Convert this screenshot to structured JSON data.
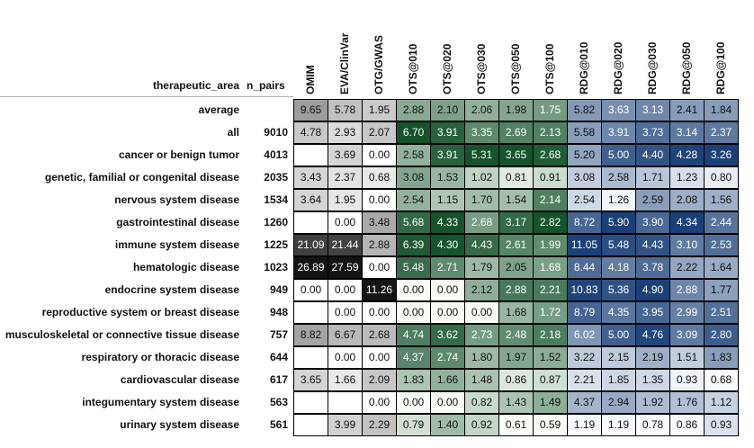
{
  "chart_data": {
    "type": "heatmap",
    "row_header": "therapeutic_area",
    "count_header": "n_pairs",
    "columns": [
      "OMIM",
      "EVA/ClinVar",
      "OTG/GWAS",
      "OTS@010",
      "OTS@020",
      "OTS@030",
      "OTS@050",
      "OTS@100",
      "RDG@010",
      "RDG@020",
      "RDG@030",
      "RDG@050",
      "RDG@100"
    ],
    "column_groups": [
      "gray",
      "gray",
      "gray",
      "green",
      "green",
      "green",
      "green",
      "green",
      "blue",
      "blue",
      "blue",
      "blue",
      "blue"
    ],
    "colors": {
      "gray_low": "#ffffff",
      "gray_high": "#000000",
      "green_low": "#f7fcf5",
      "green_high": "#00441b",
      "blue_low": "#f7fbff",
      "blue_high": "#08306b"
    },
    "rows": [
      {
        "label": "average",
        "n_pairs": "",
        "values": [
          9.65,
          5.78,
          1.95,
          2.88,
          2.1,
          2.06,
          1.98,
          1.75,
          5.82,
          3.63,
          3.13,
          2.41,
          1.84
        ]
      },
      {
        "label": "all",
        "n_pairs": "9010",
        "values": [
          4.78,
          2.93,
          2.07,
          6.7,
          3.91,
          3.35,
          2.69,
          2.13,
          5.58,
          3.91,
          3.73,
          3.14,
          2.37
        ]
      },
      {
        "label": "cancer or benign tumor",
        "n_pairs": "4013",
        "values": [
          null,
          3.69,
          0.0,
          2.58,
          3.91,
          5.31,
          3.65,
          2.68,
          5.2,
          5.0,
          4.4,
          4.28,
          3.26
        ]
      },
      {
        "label": "genetic, familial or congenital disease",
        "n_pairs": "2035",
        "values": [
          3.43,
          2.37,
          0.68,
          3.08,
          1.53,
          1.02,
          0.81,
          0.91,
          3.08,
          2.58,
          1.71,
          1.23,
          0.8
        ]
      },
      {
        "label": "nervous system disease",
        "n_pairs": "1534",
        "values": [
          3.64,
          1.95,
          0.0,
          2.54,
          1.15,
          1.7,
          1.54,
          2.14,
          2.54,
          1.26,
          2.59,
          2.08,
          1.56
        ]
      },
      {
        "label": "gastrointestinal disease",
        "n_pairs": "1260",
        "values": [
          null,
          0.0,
          3.48,
          5.68,
          4.33,
          2.68,
          3.17,
          2.82,
          8.72,
          5.9,
          3.9,
          4.34,
          2.44
        ]
      },
      {
        "label": "immune system disease",
        "n_pairs": "1225",
        "values": [
          21.09,
          21.44,
          2.88,
          6.39,
          4.3,
          4.43,
          2.61,
          1.99,
          11.05,
          5.48,
          4.43,
          3.1,
          2.53
        ]
      },
      {
        "label": "hematologic disease",
        "n_pairs": "1023",
        "values": [
          26.89,
          27.59,
          0.0,
          5.48,
          2.71,
          1.79,
          2.05,
          1.68,
          8.44,
          4.18,
          3.78,
          2.22,
          1.64
        ]
      },
      {
        "label": "endocrine system disease",
        "n_pairs": "949",
        "values": [
          0.0,
          0.0,
          11.26,
          0.0,
          0.0,
          2.12,
          2.88,
          2.21,
          10.83,
          5.36,
          4.9,
          2.88,
          1.77
        ]
      },
      {
        "label": "reproductive system or breast disease",
        "n_pairs": "948",
        "values": [
          null,
          0.0,
          0.0,
          0.0,
          0.0,
          0.0,
          1.68,
          1.72,
          8.79,
          4.35,
          3.95,
          2.99,
          2.51
        ]
      },
      {
        "label": "musculoskeletal or connective tissue disease",
        "n_pairs": "757",
        "values": [
          8.82,
          6.67,
          2.68,
          4.74,
          3.62,
          2.73,
          2.48,
          2.18,
          6.02,
          5.0,
          4.76,
          3.09,
          2.8
        ]
      },
      {
        "label": "respiratory or thoracic disease",
        "n_pairs": "644",
        "values": [
          null,
          0.0,
          0.0,
          4.37,
          2.74,
          1.8,
          1.97,
          1.52,
          3.22,
          2.15,
          2.19,
          1.51,
          1.83
        ]
      },
      {
        "label": "cardiovascular disease",
        "n_pairs": "617",
        "values": [
          3.65,
          1.66,
          2.09,
          1.83,
          1.66,
          1.48,
          0.86,
          0.87,
          2.21,
          1.85,
          1.35,
          0.93,
          0.68
        ]
      },
      {
        "label": "integumentary system disease",
        "n_pairs": "563",
        "values": [
          null,
          null,
          0.0,
          0.0,
          0.0,
          0.82,
          1.43,
          1.49,
          4.37,
          2.94,
          1.92,
          1.76,
          1.12
        ]
      },
      {
        "label": "urinary system disease",
        "n_pairs": "561",
        "values": [
          null,
          3.99,
          2.29,
          0.79,
          1.4,
          0.92,
          0.61,
          0.59,
          1.19,
          1.19,
          0.78,
          0.86,
          0.93
        ]
      }
    ]
  }
}
